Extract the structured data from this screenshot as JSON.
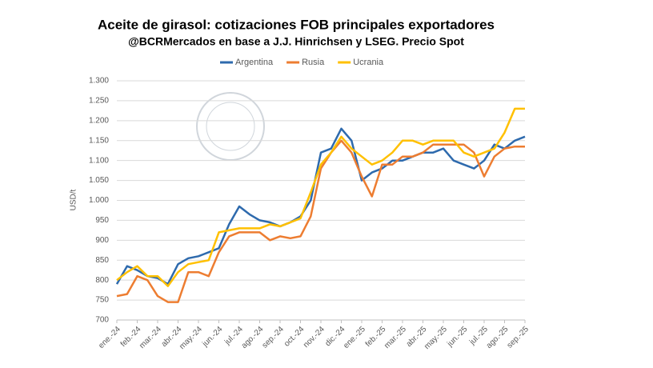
{
  "chart_data": {
    "type": "line",
    "title": "Aceite de girasol: cotizaciones FOB principales exportadores",
    "subtitle": "@BCRMercados en base a J.J. Hinrichsen y LSEG. Precio Spot",
    "y_label": "USD/t",
    "x": [
      0,
      0.5,
      1,
      1.5,
      2,
      2.5,
      3,
      3.5,
      4,
      4.5,
      5,
      5.5,
      6,
      6.5,
      7,
      7.5,
      8,
      8.5,
      9,
      9.5,
      10,
      10.5,
      11,
      11.5,
      12,
      12.5,
      13,
      13.5,
      14,
      14.5,
      15,
      15.5,
      16,
      16.5,
      17,
      17.5,
      18,
      18.5,
      19,
      19.5,
      20
    ],
    "series": [
      {
        "name": "Argentina",
        "color": "#2e6aad",
        "values": [
          790,
          835,
          825,
          810,
          805,
          790,
          840,
          855,
          860,
          870,
          880,
          940,
          985,
          965,
          950,
          945,
          935,
          945,
          960,
          1000,
          1120,
          1130,
          1180,
          1150,
          1050,
          1070,
          1080,
          1100,
          1100,
          1110,
          1120,
          1120,
          1130,
          1100,
          1090,
          1080,
          1100,
          1140,
          1130,
          1150,
          1160
        ]
      },
      {
        "name": "Rusia",
        "color": "#ed7d31",
        "values": [
          760,
          765,
          810,
          800,
          760,
          745,
          745,
          820,
          820,
          810,
          870,
          910,
          920,
          920,
          920,
          900,
          910,
          905,
          910,
          960,
          1080,
          1120,
          1150,
          1120,
          1060,
          1010,
          1090,
          1090,
          1110,
          1110,
          1120,
          1140,
          1140,
          1140,
          1140,
          1120,
          1060,
          1110,
          1130,
          1135,
          1135
        ]
      },
      {
        "name": "Ucrania",
        "color": "#ffc000",
        "values": [
          800,
          820,
          835,
          810,
          810,
          785,
          820,
          840,
          845,
          850,
          920,
          925,
          930,
          930,
          930,
          940,
          935,
          945,
          955,
          1020,
          1090,
          1120,
          1160,
          1130,
          1110,
          1090,
          1100,
          1120,
          1150,
          1150,
          1140,
          1150,
          1150,
          1150,
          1120,
          1110,
          1120,
          1130,
          1170,
          1230,
          1230
        ]
      }
    ],
    "xlim": [
      0,
      20
    ],
    "xticks": [
      {
        "value": 0,
        "label": "ene.-24"
      },
      {
        "value": 1,
        "label": "feb.-24"
      },
      {
        "value": 2,
        "label": "mar.-24"
      },
      {
        "value": 3,
        "label": "abr.-24"
      },
      {
        "value": 4,
        "label": "may.-24"
      },
      {
        "value": 5,
        "label": "jun.-24"
      },
      {
        "value": 6,
        "label": "jul.-24"
      },
      {
        "value": 7,
        "label": "ago.-24"
      },
      {
        "value": 8,
        "label": "sep.-24"
      },
      {
        "value": 9,
        "label": "oct.-24"
      },
      {
        "value": 10,
        "label": "nov.-24"
      },
      {
        "value": 11,
        "label": "dic.-24"
      },
      {
        "value": 12,
        "label": "ene.-25"
      },
      {
        "value": 13,
        "label": "feb.-25"
      },
      {
        "value": 14,
        "label": "mar.-25"
      },
      {
        "value": 15,
        "label": "abr.-25"
      },
      {
        "value": 16,
        "label": "may.-25"
      },
      {
        "value": 17,
        "label": "jun.-25"
      },
      {
        "value": 18,
        "label": "jul.-25"
      },
      {
        "value": 19,
        "label": "ago.-25"
      },
      {
        "value": 20,
        "label": "sep.-25"
      }
    ],
    "ylim": [
      700,
      1300
    ],
    "yticks": [
      700,
      750,
      800,
      850,
      900,
      950,
      {
        "value": 1000,
        "label": "1.000"
      },
      {
        "value": 1050,
        "label": "1.050"
      },
      {
        "value": 1100,
        "label": "1.100"
      },
      {
        "value": 1150,
        "label": "1.150"
      },
      {
        "value": 1200,
        "label": "1.200"
      },
      {
        "value": 1250,
        "label": "1.250"
      },
      {
        "value": 1300,
        "label": "1.300"
      }
    ],
    "grid": true,
    "legend": "top"
  }
}
